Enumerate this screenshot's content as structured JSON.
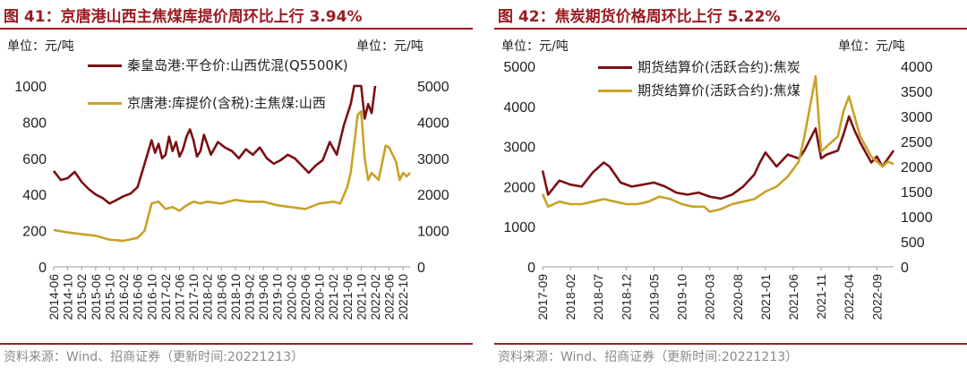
{
  "chart_data": [
    {
      "type": "line",
      "title": "图 41：京唐港山西主焦煤库提价周环比上行 3.94%",
      "title_prefix": "图 41：",
      "title_text": "京唐港山西主焦煤库提价周环比上行",
      "title_value": "3.94%",
      "left_unit": "单位：元/吨",
      "right_unit": "单位：元/吨",
      "source": "资料来源：Wind、招商证券（更新时间:20221213）",
      "y_left": {
        "lim": [
          0,
          1000
        ],
        "ticks": [
          0,
          200,
          400,
          600,
          800,
          1000
        ]
      },
      "y_right": {
        "lim": [
          0,
          5000
        ],
        "ticks": [
          0,
          1000,
          2000,
          3000,
          4000,
          5000
        ]
      },
      "x_ticks": [
        "2014-06",
        "2014-10",
        "2015-02",
        "2015-06",
        "2015-10",
        "2016-02",
        "2016-06",
        "2016-10",
        "2017-02",
        "2017-06",
        "2017-10",
        "2018-02",
        "2018-06",
        "2018-10",
        "2019-02",
        "2019-06",
        "2019-10",
        "2020-02",
        "2020-06",
        "2020-10",
        "2021-02",
        "2021-06",
        "2021-10",
        "2022-02",
        "2022-06",
        "2022-10"
      ],
      "series": [
        {
          "name": "秦皇岛港:平仓价:山西优混(Q5500K)",
          "axis": "left",
          "color": "#7b1014",
          "x": [
            "2014-06",
            "2014-08",
            "2014-10",
            "2014-12",
            "2015-02",
            "2015-04",
            "2015-06",
            "2015-08",
            "2015-10",
            "2015-12",
            "2016-02",
            "2016-04",
            "2016-06",
            "2016-08",
            "2016-10",
            "2016-11",
            "2016-12",
            "2017-01",
            "2017-02",
            "2017-03",
            "2017-04",
            "2017-05",
            "2017-06",
            "2017-07",
            "2017-08",
            "2017-09",
            "2017-10",
            "2017-11",
            "2017-12",
            "2018-01",
            "2018-03",
            "2018-05",
            "2018-07",
            "2018-09",
            "2018-11",
            "2019-01",
            "2019-03",
            "2019-05",
            "2019-07",
            "2019-09",
            "2019-11",
            "2020-01",
            "2020-03",
            "2020-05",
            "2020-07",
            "2020-09",
            "2020-11",
            "2020-12",
            "2021-01",
            "2021-03",
            "2021-05",
            "2021-07",
            "2021-08",
            "2021-09",
            "2021-10",
            "2021-11",
            "2021-12",
            "2022-01",
            "2022-02"
          ],
          "y": [
            530,
            480,
            490,
            525,
            470,
            430,
            400,
            380,
            350,
            370,
            390,
            405,
            440,
            570,
            700,
            630,
            680,
            600,
            620,
            720,
            640,
            690,
            610,
            650,
            720,
            760,
            700,
            610,
            640,
            730,
            620,
            690,
            660,
            640,
            600,
            650,
            620,
            660,
            600,
            570,
            590,
            620,
            600,
            560,
            520,
            560,
            590,
            640,
            690,
            620,
            780,
            900,
            1000,
            1000,
            1000,
            820,
            900,
            850,
            1000
          ]
        },
        {
          "name": "京唐港:库提价(含税):主焦煤:山西",
          "axis": "right",
          "color": "#c9a227",
          "x": [
            "2014-06",
            "2014-10",
            "2015-02",
            "2015-06",
            "2015-10",
            "2016-02",
            "2016-06",
            "2016-08",
            "2016-10",
            "2016-12",
            "2017-02",
            "2017-04",
            "2017-06",
            "2017-08",
            "2017-10",
            "2017-12",
            "2018-02",
            "2018-06",
            "2018-10",
            "2019-02",
            "2019-06",
            "2019-10",
            "2020-02",
            "2020-06",
            "2020-10",
            "2021-02",
            "2021-04",
            "2021-06",
            "2021-07",
            "2021-08",
            "2021-09",
            "2021-10",
            "2021-11",
            "2021-12",
            "2022-01",
            "2022-03",
            "2022-05",
            "2022-06",
            "2022-08",
            "2022-09",
            "2022-10",
            "2022-11",
            "2022-12"
          ],
          "y": [
            1020,
            950,
            900,
            860,
            750,
            720,
            800,
            1000,
            1750,
            1800,
            1600,
            1650,
            1550,
            1700,
            1800,
            1750,
            1800,
            1750,
            1850,
            1800,
            1800,
            1700,
            1650,
            1600,
            1750,
            1800,
            1750,
            2200,
            2600,
            3400,
            4200,
            4300,
            3000,
            2400,
            2600,
            2400,
            3350,
            3300,
            2900,
            2400,
            2600,
            2500,
            2600
          ]
        }
      ]
    },
    {
      "type": "line",
      "title": "图 42：焦炭期货价格周环比上行 5.22%",
      "title_prefix": "图 42：",
      "title_text": "焦炭期货价格周环比上行",
      "title_value": "5.22%",
      "left_unit": "单位：元/吨",
      "right_unit": "单位：元/吨",
      "source": "资料来源：Wind、招商证券（更新时间:20221213）",
      "y_left": {
        "lim": [
          0,
          5000
        ],
        "ticks": [
          0,
          1000,
          2000,
          3000,
          4000,
          5000
        ]
      },
      "y_right": {
        "lim": [
          0,
          4000
        ],
        "ticks": [
          0,
          500,
          1000,
          1500,
          2000,
          2500,
          3000,
          3500,
          4000
        ]
      },
      "x_ticks": [
        "2017-09",
        "2018-02",
        "2018-07",
        "2018-12",
        "2019-05",
        "2019-10",
        "2020-03",
        "2020-08",
        "2021-01",
        "2021-06",
        "2021-11",
        "2022-04",
        "2022-09"
      ],
      "series": [
        {
          "name": "期货结算价(活跃合约):焦炭",
          "axis": "left",
          "color": "#7b1014",
          "x": [
            "2017-09",
            "2017-10",
            "2017-12",
            "2018-02",
            "2018-04",
            "2018-06",
            "2018-08",
            "2018-09",
            "2018-11",
            "2019-01",
            "2019-03",
            "2019-05",
            "2019-07",
            "2019-09",
            "2019-11",
            "2020-01",
            "2020-03",
            "2020-05",
            "2020-07",
            "2020-09",
            "2020-11",
            "2020-12",
            "2021-01",
            "2021-03",
            "2021-05",
            "2021-07",
            "2021-08",
            "2021-10",
            "2021-11",
            "2021-12",
            "2022-02",
            "2022-03",
            "2022-04",
            "2022-05",
            "2022-06",
            "2022-08",
            "2022-09",
            "2022-10",
            "2022-11",
            "2022-12"
          ],
          "y": [
            2400,
            1800,
            2150,
            2050,
            2000,
            2350,
            2600,
            2500,
            2100,
            2000,
            2050,
            2100,
            2000,
            1850,
            1800,
            1850,
            1750,
            1700,
            1800,
            2000,
            2300,
            2600,
            2850,
            2500,
            2800,
            2700,
            2900,
            3450,
            2700,
            2800,
            2900,
            3300,
            3750,
            3400,
            3100,
            2600,
            2750,
            2500,
            2700,
            2900
          ]
        },
        {
          "name": "期货结算价(活跃合约):焦煤",
          "axis": "right",
          "color": "#c9a227",
          "x": [
            "2017-09",
            "2017-10",
            "2017-12",
            "2018-02",
            "2018-04",
            "2018-06",
            "2018-08",
            "2018-10",
            "2018-12",
            "2019-02",
            "2019-04",
            "2019-06",
            "2019-08",
            "2019-10",
            "2019-12",
            "2020-02",
            "2020-03",
            "2020-05",
            "2020-07",
            "2020-09",
            "2020-11",
            "2021-01",
            "2021-03",
            "2021-05",
            "2021-07",
            "2021-08",
            "2021-09",
            "2021-10",
            "2021-11",
            "2021-12",
            "2022-02",
            "2022-03",
            "2022-04",
            "2022-05",
            "2022-06",
            "2022-08",
            "2022-09",
            "2022-10",
            "2022-11",
            "2022-12"
          ],
          "y": [
            1450,
            1200,
            1300,
            1250,
            1250,
            1300,
            1350,
            1300,
            1250,
            1250,
            1300,
            1400,
            1350,
            1250,
            1200,
            1200,
            1100,
            1150,
            1250,
            1300,
            1350,
            1500,
            1600,
            1800,
            2100,
            2600,
            3200,
            3800,
            2300,
            2400,
            2600,
            3100,
            3400,
            3000,
            2600,
            2200,
            2100,
            2000,
            2100,
            2050
          ]
        }
      ]
    }
  ]
}
